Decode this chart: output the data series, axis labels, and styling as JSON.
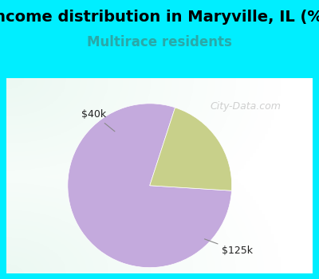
{
  "title": "Income distribution in Maryville, IL (%)",
  "subtitle": "Multirace residents",
  "title_fontsize": 14,
  "subtitle_fontsize": 12,
  "title_color": "#000000",
  "subtitle_color": "#2aa8a8",
  "outer_bg_color": "#00eeff",
  "chart_bg_gradient_top_left": "#c8e8d0",
  "chart_bg_gradient_center": "#f0f8f0",
  "slices": [
    0.79,
    0.21
  ],
  "colors": [
    "#c4aadd",
    "#c8d08a"
  ],
  "startangle": 72,
  "watermark": "City-Data.com",
  "label_40k": "$40k",
  "label_125k": "$125k",
  "label_color": "#222222",
  "label_fontsize": 9,
  "line_color": "#888888"
}
